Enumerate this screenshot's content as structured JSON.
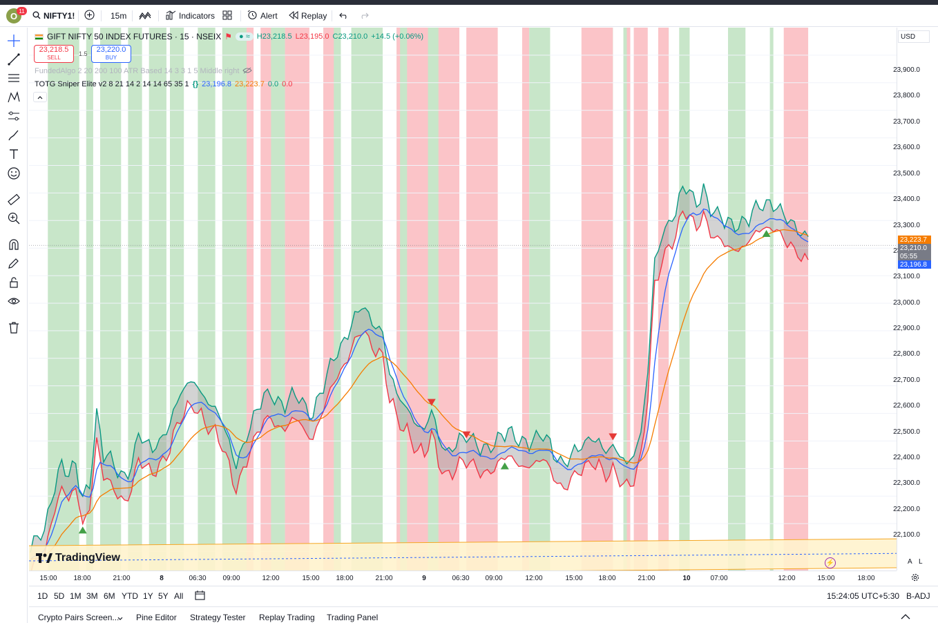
{
  "topbar": {
    "avatar_letter": "O",
    "notification_count": "11",
    "symbol": "NIFTY1!",
    "interval": "15m",
    "indicators_label": "Indicators",
    "alert_label": "Alert",
    "replay_label": "Replay"
  },
  "legend": {
    "title": "GIFT NIFTY 50 INDEX FUTURES · 15 · NSEIX",
    "ohlc_h": "H23,218.5",
    "ohlc_l": "L23,195.0",
    "ohlc_c": "C23,210.0",
    "change": "+14.5 (+0.06%)",
    "sell_price": "23,218.5",
    "sell_label": "SELL",
    "spread": "1.5",
    "buy_price": "23,220.0",
    "buy_label": "BUY",
    "indicator1": "FundedAlgo 2 20 200 100 ATR Based 14 3 3 1 5 Middle right",
    "indicator2_name": "TOTG Sniper Elite v2 8 21 14 2 14 14 65 35 1",
    "indicator2_v1": "23,196.8",
    "indicator2_v2": "23,223.7",
    "indicator2_v3": "0.0",
    "indicator2_v4": "0.0"
  },
  "price_axis": {
    "currency": "USD",
    "labels": [
      "23,900.0",
      "23,800.0",
      "23,700.0",
      "23,600.0",
      "23,500.0",
      "23,400.0",
      "23,300.0",
      "23,200.0",
      "23,100.0",
      "23,000.0",
      "22,900.0",
      "22,800.0",
      "22,700.0",
      "22,600.0",
      "22,500.0",
      "22,400.0",
      "22,300.0",
      "22,200.0",
      "22,100.0"
    ],
    "tag_orange": "23,223.7",
    "tag_last": "23,210.0",
    "tag_countdown": "05:55",
    "tag_blue": "23,196.8"
  },
  "time_axis": {
    "labels": [
      "15:00",
      "18:00",
      "21:00",
      "8",
      "06:30",
      "09:00",
      "12:00",
      "15:00",
      "18:00",
      "21:00",
      "9",
      "06:30",
      "09:00",
      "12:00",
      "15:00",
      "18:00",
      "21:00",
      "10",
      "07:00",
      "12:00",
      "15:00",
      "18:00"
    ]
  },
  "range_bar": {
    "ranges": [
      "1D",
      "5D",
      "1M",
      "3M",
      "6M",
      "YTD",
      "1Y",
      "5Y",
      "All"
    ],
    "clock": "15:24:05 UTC+5:30",
    "adj": "B-ADJ",
    "scale_a": "A",
    "scale_l": "L"
  },
  "bottom_panel": {
    "tabs": [
      "Crypto Pairs Screen...",
      "Pine Editor",
      "Strategy Tester",
      "Replay Trading",
      "Trading Panel"
    ]
  },
  "branding": {
    "logo_text": "TradingView"
  },
  "colors": {
    "green_zone": "#c8e6c9",
    "red_zone": "#fbc4c8",
    "upper_band": "#089981",
    "lower_band": "#f23645",
    "fast_ma": "#2962ff",
    "slow_ma": "#f57c00",
    "zone_box": "#fff3cd"
  },
  "chart_data": {
    "type": "line",
    "ylim": [
      22030,
      24000
    ],
    "x_count": 230,
    "series": [],
    "markers": {
      "buy_triangles": [
        15,
        136,
        211
      ],
      "sell_triangles": [
        115,
        125,
        167
      ]
    }
  }
}
